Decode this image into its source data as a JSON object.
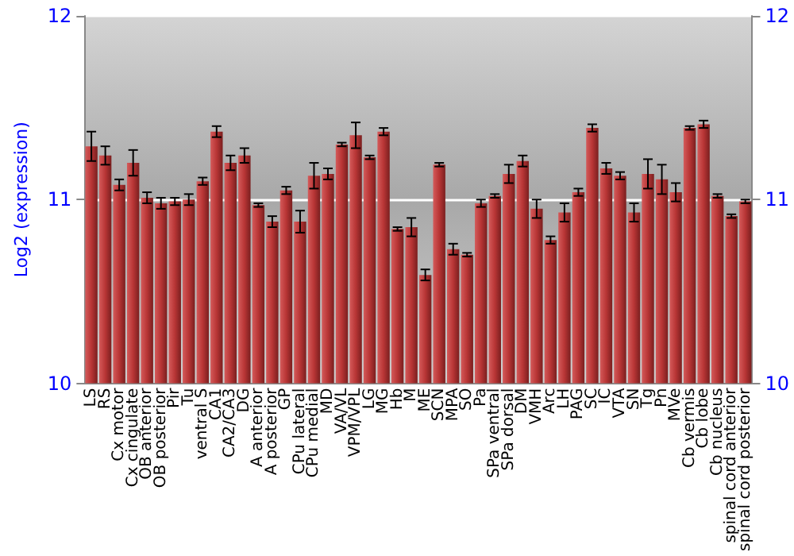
{
  "chart_data": {
    "type": "bar",
    "ylabel": "Log2 (expression)",
    "categories": [
      "LS",
      "RS",
      "Cx motor",
      "Cx cingulate",
      "OB anterior",
      "OB posterior",
      "Pir",
      "Tu",
      "ventral S",
      "CA1",
      "CA2/CA3",
      "DG",
      "A anterior",
      "A posterior",
      "GP",
      "CPu lateral",
      "CPu medial",
      "MD",
      "VA/VL",
      "VPM/VPL",
      "LG",
      "MG",
      "Hb",
      "M",
      "ME",
      "SCN",
      "MPA",
      "SO",
      "Pa",
      "SPa ventral",
      "SPa dorsal",
      "DM",
      "VMH",
      "Arc",
      "LH",
      "PAG",
      "SC",
      "IC",
      "VTA",
      "SN",
      "Tg",
      "Pn",
      "MVe",
      "Cb vermis",
      "Cb lobe",
      "Cb nucleus",
      "spinal cord anterior",
      "spinal cord posterior"
    ],
    "values": [
      11.29,
      11.24,
      11.08,
      11.2,
      11.01,
      10.98,
      10.99,
      11.0,
      11.1,
      11.37,
      11.2,
      11.24,
      10.97,
      10.88,
      11.05,
      10.88,
      11.13,
      11.14,
      11.3,
      11.35,
      11.23,
      11.37,
      10.84,
      10.85,
      10.59,
      11.19,
      10.73,
      10.7,
      10.98,
      11.02,
      11.14,
      11.21,
      10.95,
      10.78,
      10.93,
      11.04,
      11.39,
      11.17,
      11.13,
      10.93,
      11.14,
      11.11,
      11.04,
      11.39,
      11.41,
      11.02,
      10.91,
      10.99
    ],
    "errors": [
      0.08,
      0.05,
      0.03,
      0.07,
      0.03,
      0.03,
      0.02,
      0.03,
      0.02,
      0.03,
      0.04,
      0.04,
      0.01,
      0.03,
      0.02,
      0.06,
      0.07,
      0.03,
      0.01,
      0.07,
      0.01,
      0.02,
      0.01,
      0.05,
      0.03,
      0.01,
      0.03,
      0.01,
      0.02,
      0.01,
      0.05,
      0.03,
      0.05,
      0.02,
      0.05,
      0.02,
      0.02,
      0.03,
      0.02,
      0.05,
      0.08,
      0.08,
      0.05,
      0.01,
      0.02,
      0.01,
      0.01,
      0.01
    ],
    "color": "#b83535",
    "ylim": [
      10,
      12
    ],
    "yticks": [
      10,
      11,
      12
    ],
    "y2lim": [
      10,
      12
    ],
    "y2ticks": [
      10,
      11,
      12
    ],
    "grid": "y"
  }
}
